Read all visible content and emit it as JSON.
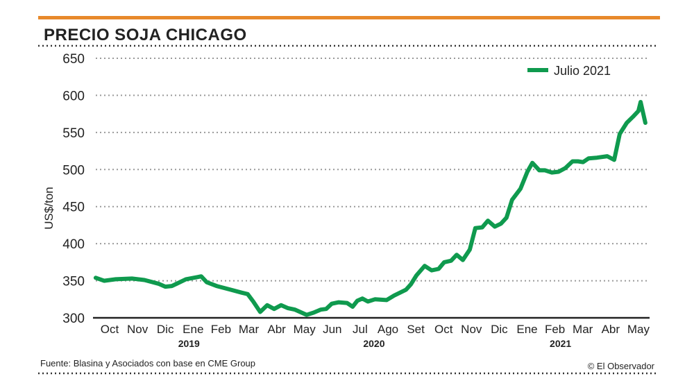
{
  "colors": {
    "accent": "#e8892b",
    "line": "#0f9a4e",
    "axis": "#222222",
    "grid": "#999999"
  },
  "chart_data": {
    "type": "line",
    "title": "PRECIO SOJA CHICAGO",
    "xlabel": "",
    "ylabel": "US$/ton",
    "ylim": [
      300,
      650
    ],
    "yticks": [
      300,
      350,
      400,
      450,
      500,
      550,
      600,
      650
    ],
    "grid": "horizontal dotted",
    "legend_position": "top-right",
    "categories": [
      "Oct",
      "Nov",
      "Dic",
      "Ene",
      "Feb",
      "Mar",
      "Abr",
      "May",
      "Jun",
      "Jul",
      "Ago",
      "Set",
      "Oct",
      "Nov",
      "Dic",
      "Ene",
      "Feb",
      "Mar",
      "Abr",
      "May"
    ],
    "years": [
      {
        "label": "2019",
        "at": 2.85
      },
      {
        "label": "2020",
        "at": 9.5
      },
      {
        "label": "2021",
        "at": 16.2
      }
    ],
    "x_units": "months index (0 = Oct 2019)",
    "series": [
      {
        "name": "Julio 2021",
        "points": [
          [
            -0.5,
            354
          ],
          [
            -0.2,
            350
          ],
          [
            0.22,
            352
          ],
          [
            0.8,
            353
          ],
          [
            1.25,
            351
          ],
          [
            1.75,
            346
          ],
          [
            2.0,
            342
          ],
          [
            2.24,
            343
          ],
          [
            2.74,
            352
          ],
          [
            3.17,
            355
          ],
          [
            3.29,
            356
          ],
          [
            3.49,
            348
          ],
          [
            3.84,
            343
          ],
          [
            4.34,
            338
          ],
          [
            4.74,
            334
          ],
          [
            4.96,
            332
          ],
          [
            5.16,
            322
          ],
          [
            5.41,
            308
          ],
          [
            5.66,
            317
          ],
          [
            5.91,
            312
          ],
          [
            6.16,
            317
          ],
          [
            6.41,
            313
          ],
          [
            6.66,
            311
          ],
          [
            7.08,
            304
          ],
          [
            7.33,
            307
          ],
          [
            7.58,
            311
          ],
          [
            7.78,
            312
          ],
          [
            7.98,
            319
          ],
          [
            8.23,
            321
          ],
          [
            8.53,
            320
          ],
          [
            8.73,
            315
          ],
          [
            8.9,
            323
          ],
          [
            9.08,
            326
          ],
          [
            9.28,
            322
          ],
          [
            9.53,
            325
          ],
          [
            9.95,
            324
          ],
          [
            10.22,
            330
          ],
          [
            10.65,
            338
          ],
          [
            10.82,
            345
          ],
          [
            11.02,
            357
          ],
          [
            11.32,
            370
          ],
          [
            11.57,
            364
          ],
          [
            11.82,
            366
          ],
          [
            12.02,
            375
          ],
          [
            12.27,
            377
          ],
          [
            12.47,
            385
          ],
          [
            12.69,
            378
          ],
          [
            12.94,
            392
          ],
          [
            13.14,
            421
          ],
          [
            13.39,
            422
          ],
          [
            13.59,
            431
          ],
          [
            13.84,
            423
          ],
          [
            14.06,
            427
          ],
          [
            14.26,
            435
          ],
          [
            14.46,
            459
          ],
          [
            14.76,
            474
          ],
          [
            15.01,
            497
          ],
          [
            15.19,
            509
          ],
          [
            15.44,
            499
          ],
          [
            15.64,
            499
          ],
          [
            15.89,
            496
          ],
          [
            16.13,
            497
          ],
          [
            16.38,
            502
          ],
          [
            16.63,
            511
          ],
          [
            16.83,
            511
          ],
          [
            17.01,
            510
          ],
          [
            17.21,
            515
          ],
          [
            17.51,
            516
          ],
          [
            17.88,
            518
          ],
          [
            18.13,
            513
          ],
          [
            18.33,
            548
          ],
          [
            18.58,
            563
          ],
          [
            18.8,
            571
          ],
          [
            19.0,
            579
          ],
          [
            19.08,
            591
          ],
          [
            19.25,
            563
          ]
        ]
      }
    ]
  },
  "footer": {
    "source": "Fuente: Blasina y Asociados con base en CME Group",
    "credit": "© El Observador"
  }
}
